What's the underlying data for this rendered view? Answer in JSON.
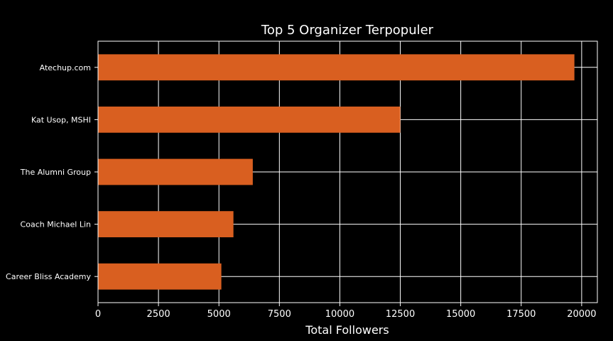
{
  "chart_data": {
    "type": "bar",
    "orientation": "horizontal",
    "title": "Top 5 Organizer Terpopuler",
    "xlabel": "Total Followers",
    "ylabel": "",
    "categories": [
      "Atechup.com",
      "Kat Usop, MSHI",
      "The Alumni Group",
      "Coach Michael Lin",
      "Career Bliss Academy"
    ],
    "values": [
      19700,
      12500,
      6400,
      5600,
      5100
    ],
    "xlim": [
      0,
      20650
    ],
    "xticks": [
      0,
      2500,
      5000,
      7500,
      10000,
      12500,
      15000,
      17500,
      20000
    ],
    "xtick_labels": [
      "0",
      "2500",
      "5000",
      "7500",
      "10000",
      "12500",
      "15000",
      "17500",
      "20000"
    ],
    "grid": true,
    "bar_color": "#d95f20",
    "background_color": "#000000",
    "text_color": "#ffffff"
  }
}
